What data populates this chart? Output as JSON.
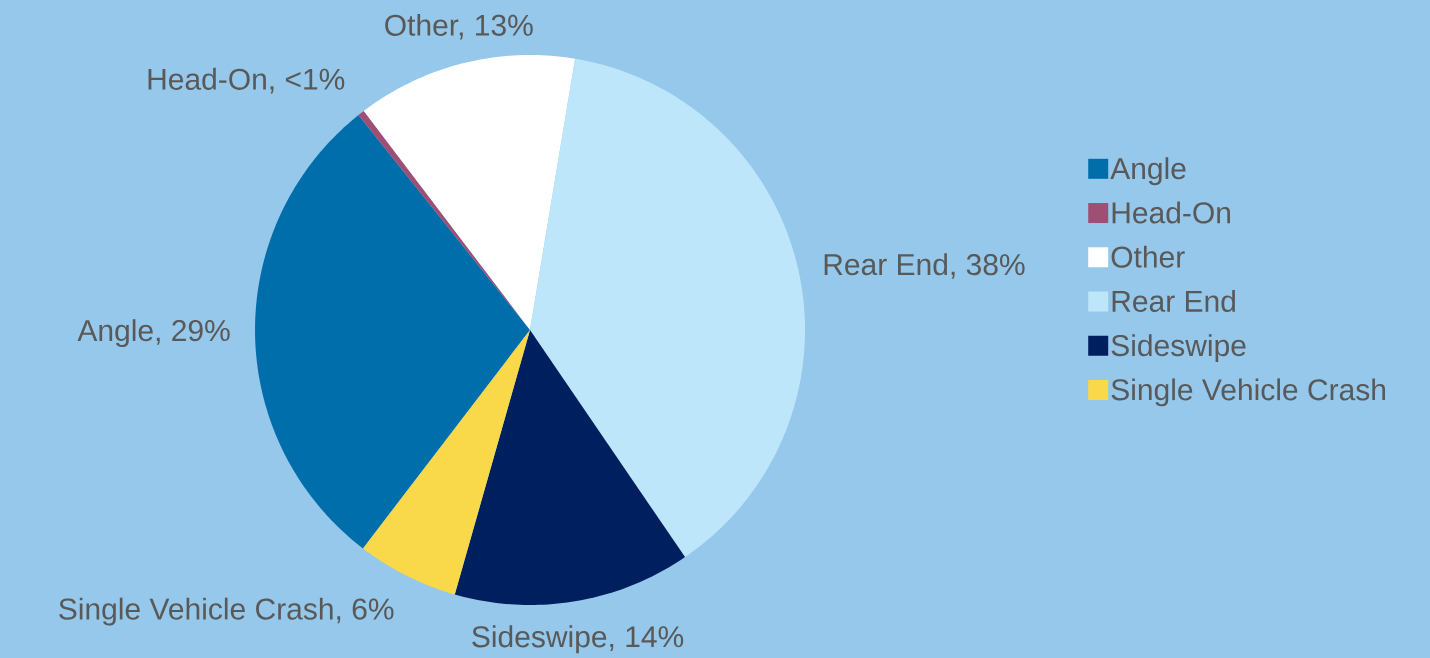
{
  "chart_data": {
    "type": "pie",
    "categories": [
      "Angle",
      "Head-On",
      "Other",
      "Rear End",
      "Sideswipe",
      "Single Vehicle Crash"
    ],
    "values": [
      29,
      0.4,
      13,
      38,
      14,
      6
    ],
    "value_labels": [
      "Angle, 29%",
      "Head-On, <1%",
      "Other, 13%",
      "Rear End, 38%",
      "Sideswipe, 14%",
      "Single Vehicle Crash, 6%"
    ],
    "colors": [
      "#006eaa",
      "#9e4f73",
      "#ffffff",
      "#bde6fb",
      "#001f5f",
      "#f9d84a"
    ],
    "legend": "right"
  }
}
